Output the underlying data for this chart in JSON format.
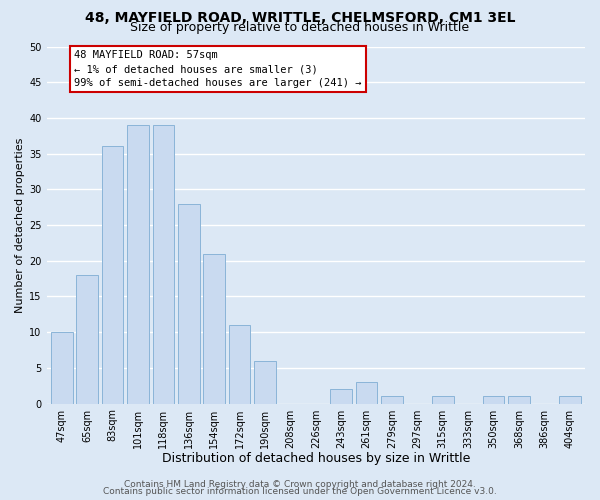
{
  "title_line1": "48, MAYFIELD ROAD, WRITTLE, CHELMSFORD, CM1 3EL",
  "title_line2": "Size of property relative to detached houses in Writtle",
  "xlabel": "Distribution of detached houses by size in Writtle",
  "ylabel": "Number of detached properties",
  "bar_labels": [
    "47sqm",
    "65sqm",
    "83sqm",
    "101sqm",
    "118sqm",
    "136sqm",
    "154sqm",
    "172sqm",
    "190sqm",
    "208sqm",
    "226sqm",
    "243sqm",
    "261sqm",
    "279sqm",
    "297sqm",
    "315sqm",
    "333sqm",
    "350sqm",
    "368sqm",
    "386sqm",
    "404sqm"
  ],
  "bar_values": [
    10,
    18,
    36,
    39,
    39,
    28,
    21,
    11,
    6,
    0,
    0,
    2,
    3,
    1,
    0,
    1,
    0,
    1,
    1,
    0,
    1
  ],
  "bar_color": "#c9daf0",
  "bar_edge_color": "#8ab4d8",
  "ylim": [
    0,
    50
  ],
  "yticks": [
    0,
    5,
    10,
    15,
    20,
    25,
    30,
    35,
    40,
    45,
    50
  ],
  "annotation_title": "48 MAYFIELD ROAD: 57sqm",
  "annotation_line1": "← 1% of detached houses are smaller (3)",
  "annotation_line2": "99% of semi-detached houses are larger (241) →",
  "annotation_box_facecolor": "#ffffff",
  "annotation_box_edgecolor": "#cc0000",
  "footer_line1": "Contains HM Land Registry data © Crown copyright and database right 2024.",
  "footer_line2": "Contains public sector information licensed under the Open Government Licence v3.0.",
  "bg_color": "#dce8f5",
  "plot_bg_color": "#dce8f5",
  "grid_color": "#ffffff",
  "title1_fontsize": 10,
  "title2_fontsize": 9,
  "xlabel_fontsize": 9,
  "ylabel_fontsize": 8,
  "tick_fontsize": 7,
  "annot_fontsize": 7.5,
  "footer_fontsize": 6.5
}
